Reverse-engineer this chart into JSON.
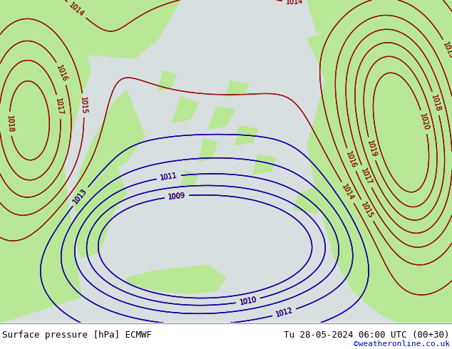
{
  "title_left": "Surface pressure [hPa] ECMWF",
  "title_right": "Tu 28-05-2024 06:00 UTC (00+30)",
  "copyright": "©weatheronline.co.uk",
  "land_color": "#b8e896",
  "sea_color": "#e0e8e0",
  "contour_color_black": "#000000",
  "contour_color_red": "#cc0000",
  "contour_color_blue": "#0000cc",
  "footer_fontsize": 9,
  "copyright_color": "#0000cc",
  "figsize": [
    6.34,
    4.9
  ],
  "dpi": 100
}
